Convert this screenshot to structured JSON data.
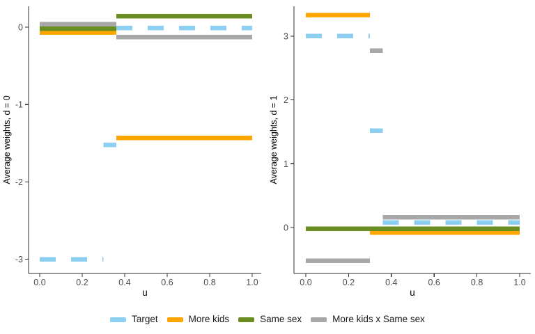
{
  "page": {
    "background": "#ffffff"
  },
  "legend": {
    "items": [
      {
        "label": "Target",
        "color": "#8CCFF1",
        "dashed": true
      },
      {
        "label": "More kids",
        "color": "#FFA500",
        "dashed": false
      },
      {
        "label": "Same sex",
        "color": "#6B8E23",
        "dashed": false
      },
      {
        "label": "More kids x Same sex",
        "color": "#A8A8A8",
        "dashed": false
      }
    ]
  },
  "style": {
    "axis_color": "#2f2f2f",
    "tick_label_color": "#4d4d4d",
    "title_color": "#000000",
    "line_width": 6.5,
    "dash_pattern": "23 22"
  },
  "chart_data": [
    {
      "type": "line",
      "title": "",
      "xlabel": "u",
      "ylabel": "Average weights, d = 0",
      "xlim": [
        0,
        1
      ],
      "ylim": [
        -3.3,
        0.3
      ],
      "grid": false,
      "xticks": [
        0.0,
        0.2,
        0.4,
        0.6,
        0.8,
        1.0
      ],
      "xtick_labels": [
        "0.0",
        "0.2",
        "0.4",
        "0.6",
        "0.8",
        "1.0"
      ],
      "yticks": [
        0,
        -1,
        -2,
        -3
      ],
      "ytick_labels": [
        "0",
        "-1",
        "-2",
        "-3"
      ],
      "series": [
        {
          "name": "Target",
          "segments": [
            {
              "x": [
                0.0,
                0.3
              ],
              "y": -3.0
            },
            {
              "x": [
                0.3,
                0.36
              ],
              "y": -1.52
            },
            {
              "x": [
                0.36,
                1.0
              ],
              "y": -0.01
            }
          ]
        },
        {
          "name": "More kids",
          "segments": [
            {
              "x": [
                0.0,
                0.36
              ],
              "y": -0.07
            },
            {
              "x": [
                0.36,
                1.0
              ],
              "y": -1.43
            }
          ]
        },
        {
          "name": "Same sex",
          "segments": [
            {
              "x": [
                0.0,
                0.36
              ],
              "y": -0.02
            },
            {
              "x": [
                0.36,
                1.0
              ],
              "y": 0.14
            }
          ]
        },
        {
          "name": "More kids x Same sex",
          "segments": [
            {
              "x": [
                0.0,
                0.36
              ],
              "y": 0.04
            },
            {
              "x": [
                0.36,
                1.0
              ],
              "y": -0.13
            }
          ]
        }
      ]
    },
    {
      "type": "line",
      "title": "",
      "xlabel": "u",
      "ylabel": "Average weights, d = 1",
      "xlim": [
        0,
        1
      ],
      "ylim": [
        -0.7,
        3.5
      ],
      "grid": false,
      "xticks": [
        0.0,
        0.2,
        0.4,
        0.6,
        0.8,
        1.0
      ],
      "xtick_labels": [
        "0.0",
        "0.2",
        "0.4",
        "0.6",
        "0.8",
        "1.0"
      ],
      "yticks": [
        3,
        2,
        1,
        0
      ],
      "ytick_labels": [
        "3",
        "2",
        "1",
        "0"
      ],
      "series": [
        {
          "name": "Target",
          "segments": [
            {
              "x": [
                0.0,
                0.3
              ],
              "y": 3.0
            },
            {
              "x": [
                0.3,
                0.36
              ],
              "y": 1.52
            },
            {
              "x": [
                0.36,
                1.0
              ],
              "y": 0.08
            }
          ]
        },
        {
          "name": "More kids",
          "segments": [
            {
              "x": [
                0.0,
                0.3
              ],
              "y": 3.33
            },
            {
              "x": [
                0.3,
                1.0
              ],
              "y": -0.08
            }
          ]
        },
        {
          "name": "Same sex",
          "segments": [
            {
              "x": [
                0.0,
                1.0
              ],
              "y": -0.02
            }
          ]
        },
        {
          "name": "More kids x Same sex",
          "segments": [
            {
              "x": [
                0.0,
                0.3
              ],
              "y": -0.52
            },
            {
              "x": [
                0.3,
                0.36
              ],
              "y": 2.77
            },
            {
              "x": [
                0.36,
                1.0
              ],
              "y": 0.16
            }
          ]
        }
      ]
    }
  ]
}
